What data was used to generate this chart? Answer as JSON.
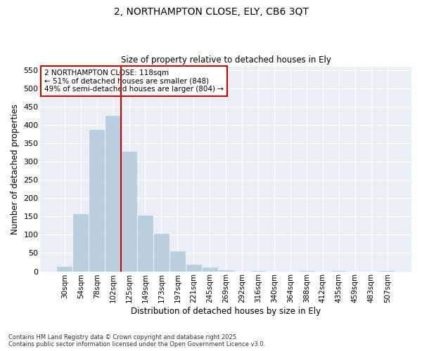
{
  "title": "2, NORTHAMPTON CLOSE, ELY, CB6 3QT",
  "subtitle": "Size of property relative to detached houses in Ely",
  "xlabel": "Distribution of detached houses by size in Ely",
  "ylabel": "Number of detached properties",
  "bar_color": "#b8cfe0",
  "bar_edge_color": "#b8cfe0",
  "plot_bg_color": "#e8eef4",
  "fig_bg_color": "#ffffff",
  "grid_color": "#ffffff",
  "categories": [
    "30sqm",
    "54sqm",
    "78sqm",
    "102sqm",
    "125sqm",
    "149sqm",
    "173sqm",
    "197sqm",
    "221sqm",
    "245sqm",
    "269sqm",
    "292sqm",
    "316sqm",
    "340sqm",
    "364sqm",
    "388sqm",
    "412sqm",
    "435sqm",
    "459sqm",
    "483sqm",
    "507sqm"
  ],
  "values": [
    13,
    157,
    386,
    425,
    328,
    152,
    103,
    55,
    18,
    10,
    3,
    0,
    1,
    0,
    0,
    1,
    0,
    1,
    0,
    0,
    1
  ],
  "vline_x": 3.5,
  "vline_color": "#cc0000",
  "annotation_text": "2 NORTHAMPTON CLOSE: 118sqm\n← 51% of detached houses are smaller (848)\n49% of semi-detached houses are larger (804) →",
  "annotation_box_color": "#ffffff",
  "annotation_edge_color": "#cc0000",
  "ylim": [
    0,
    560
  ],
  "yticks": [
    0,
    50,
    100,
    150,
    200,
    250,
    300,
    350,
    400,
    450,
    500,
    550
  ],
  "footnote": "Contains HM Land Registry data © Crown copyright and database right 2025.\nContains public sector information licensed under the Open Government Licence v3.0."
}
